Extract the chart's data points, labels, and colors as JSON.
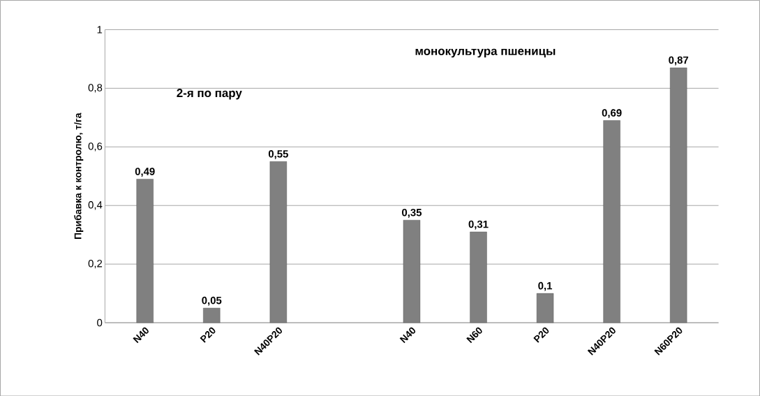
{
  "chart_data": {
    "type": "bar",
    "categories": [
      "N40",
      "P20",
      "N40P20",
      null,
      "N40",
      "N60",
      "P20",
      "N40P20",
      "N60P20"
    ],
    "values": [
      0.49,
      0.05,
      0.55,
      null,
      0.35,
      0.31,
      0.1,
      0.69,
      0.87
    ],
    "value_labels": [
      "0,49",
      "0,05",
      "0,55",
      null,
      "0,35",
      "0,31",
      "0,1",
      "0,69",
      "0,87"
    ],
    "color": "#808080",
    "ylabel": "Прибавка к контролю, т/га",
    "ylim": [
      0,
      1
    ],
    "yticks": [
      0,
      {
        "value": 0.2,
        "label": "0,2"
      },
      {
        "value": 0.4,
        "label": "0,4"
      },
      {
        "value": 0.6,
        "label": "0,6"
      },
      {
        "value": 0.8,
        "label": "0,8"
      },
      1
    ],
    "grid": "y",
    "annotations": [
      "2-я по пару",
      "монокультура   пшеницы"
    ]
  }
}
